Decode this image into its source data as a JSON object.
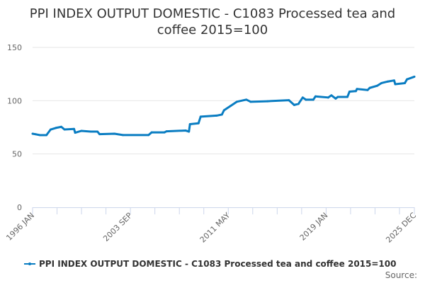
{
  "chart_data": {
    "type": "line",
    "title_lines": [
      "PPI INDEX OUTPUT DOMESTIC - C1083 Processed tea and",
      "coffee 2015=100"
    ],
    "xlabel": "",
    "ylabel": "",
    "x_range": [
      "1996-01",
      "2025-12"
    ],
    "ylim": [
      0,
      150
    ],
    "y_ticks": [
      0,
      50,
      100,
      150
    ],
    "x_tick_labels": [
      {
        "label": "1996 JAN",
        "date": "1996-01"
      },
      {
        "label": "2003 SEP",
        "date": "2003-09"
      },
      {
        "label": "2011 MAY",
        "date": "2011-05"
      },
      {
        "label": "2019 JAN",
        "date": "2019-01"
      },
      {
        "label": "2025 DEC",
        "date": "2025-12"
      }
    ],
    "grid": "horizontal",
    "legend_position": "bottom",
    "series": [
      {
        "name": "PPI INDEX OUTPUT DOMESTIC - C1083 Processed tea and coffee 2015=100",
        "color": "#0a7dc2",
        "points": [
          [
            "1996-01",
            69
          ],
          [
            "1996-04",
            68.5
          ],
          [
            "1996-08",
            67.7
          ],
          [
            "1997-02",
            67.7
          ],
          [
            "1997-06",
            73
          ],
          [
            "1997-11",
            74.5
          ],
          [
            "1998-04",
            75.5
          ],
          [
            "1998-07",
            73
          ],
          [
            "1999-04",
            73.5
          ],
          [
            "1999-05",
            70
          ],
          [
            "1999-11",
            71.7
          ],
          [
            "2000-08",
            71
          ],
          [
            "2001-02",
            71
          ],
          [
            "2001-04",
            68.6
          ],
          [
            "2002-06",
            69
          ],
          [
            "2003-02",
            67.8
          ],
          [
            "2005-02",
            67.8
          ],
          [
            "2005-05",
            70.3
          ],
          [
            "2006-05",
            70.3
          ],
          [
            "2006-07",
            71.3
          ],
          [
            "2008-01",
            72
          ],
          [
            "2008-04",
            71
          ],
          [
            "2008-05",
            78
          ],
          [
            "2009-01",
            78.8
          ],
          [
            "2009-03",
            85
          ],
          [
            "2010-06",
            86
          ],
          [
            "2010-11",
            87
          ],
          [
            "2011-01",
            91
          ],
          [
            "2011-07",
            95
          ],
          [
            "2012-01",
            99
          ],
          [
            "2012-10",
            101
          ],
          [
            "2013-02",
            99
          ],
          [
            "2014-06",
            99.5
          ],
          [
            "2016-02",
            100.5
          ],
          [
            "2016-07",
            96
          ],
          [
            "2016-11",
            97
          ],
          [
            "2017-03",
            103
          ],
          [
            "2017-06",
            101
          ],
          [
            "2018-01",
            101
          ],
          [
            "2018-03",
            104
          ],
          [
            "2019-03",
            103
          ],
          [
            "2019-06",
            105
          ],
          [
            "2019-10",
            102
          ],
          [
            "2019-12",
            103.5
          ],
          [
            "2020-09",
            103.5
          ],
          [
            "2020-11",
            108.5
          ],
          [
            "2021-05",
            109
          ],
          [
            "2021-06",
            111
          ],
          [
            "2022-04",
            110
          ],
          [
            "2022-06",
            112
          ],
          [
            "2023-01",
            114
          ],
          [
            "2023-05",
            116.5
          ],
          [
            "2023-11",
            118
          ],
          [
            "2024-05",
            119
          ],
          [
            "2024-06",
            115.5
          ],
          [
            "2025-03",
            116.5
          ],
          [
            "2025-05",
            120
          ],
          [
            "2025-12",
            122.5
          ]
        ]
      }
    ]
  },
  "source_label": "Source:"
}
